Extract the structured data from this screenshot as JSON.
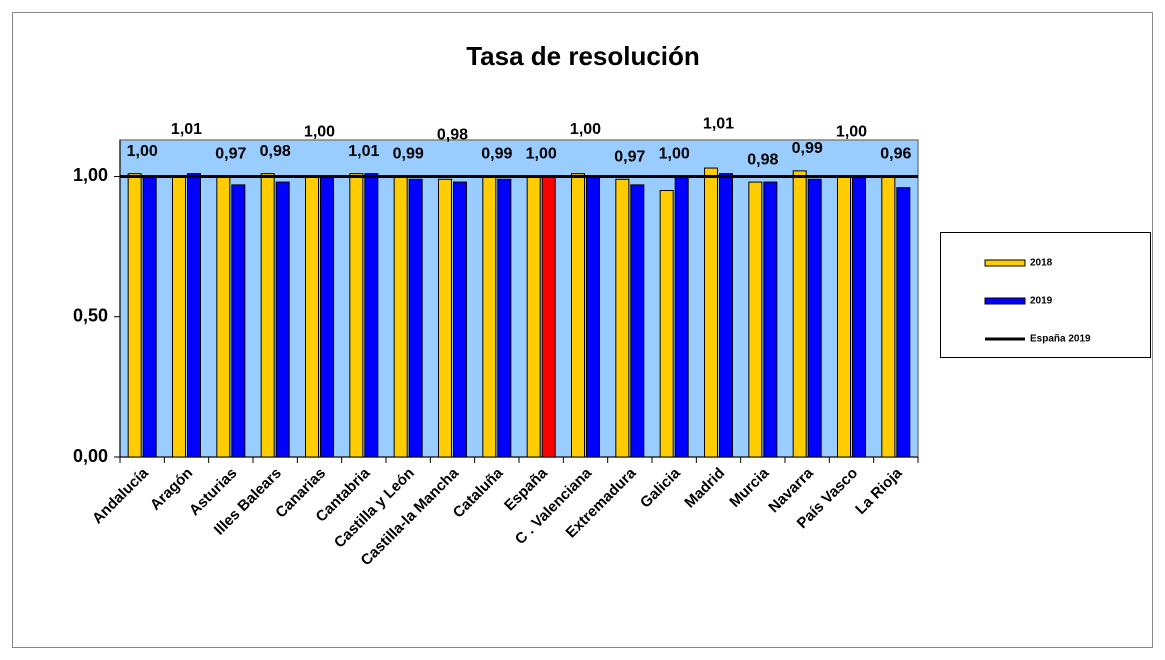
{
  "chart_data": {
    "type": "bar",
    "title": "Tasa de resolución",
    "categories": [
      "Andalucía",
      "Aragón",
      "Asturias",
      "Illes Balears",
      "Canarias",
      "Cantabria",
      "Castilla y León",
      "Castilla-la Mancha",
      "Cataluña",
      "España",
      "C . Valenciana",
      "Extremadura",
      "Galicia",
      "Madrid",
      "Murcia",
      "Navarra",
      "País Vasco",
      "La Rioja"
    ],
    "series": [
      {
        "name": "2018",
        "color": "#ffcc00",
        "values": [
          1.01,
          1.0,
          1.0,
          1.01,
          1.0,
          1.01,
          1.0,
          0.99,
          1.0,
          1.0,
          1.01,
          0.99,
          0.95,
          1.03,
          0.98,
          1.02,
          1.0,
          1.0
        ]
      },
      {
        "name": "2019",
        "color": "#0000ff",
        "values": [
          1.0,
          1.01,
          0.97,
          0.98,
          1.0,
          1.01,
          0.99,
          0.98,
          0.99,
          1.0,
          1.0,
          0.97,
          1.0,
          1.01,
          0.98,
          0.99,
          1.0,
          0.96
        ],
        "value_labels": [
          "1,00",
          "1,01",
          "0,97",
          "0,98",
          "1,00",
          "1,01",
          "0,99",
          "0,98",
          "0,99",
          "1,00",
          "1,00",
          "0,97",
          "1,00",
          "1,01",
          "0,98",
          "0,99",
          "1,00",
          "0,96"
        ]
      }
    ],
    "highlight": {
      "series": "2019",
      "category": "España",
      "color": "#ff0000"
    },
    "reference_line": {
      "name": "España 2019",
      "value": 1.0,
      "color": "#000000"
    },
    "ylim": [
      0,
      1.13
    ],
    "yticks": [
      {
        "value": 0,
        "label": "0,00"
      },
      {
        "value": 0.5,
        "label": "0,50"
      },
      {
        "value": 1,
        "label": "1,00"
      }
    ],
    "plot_background": "#99ccff",
    "legend": "right"
  }
}
